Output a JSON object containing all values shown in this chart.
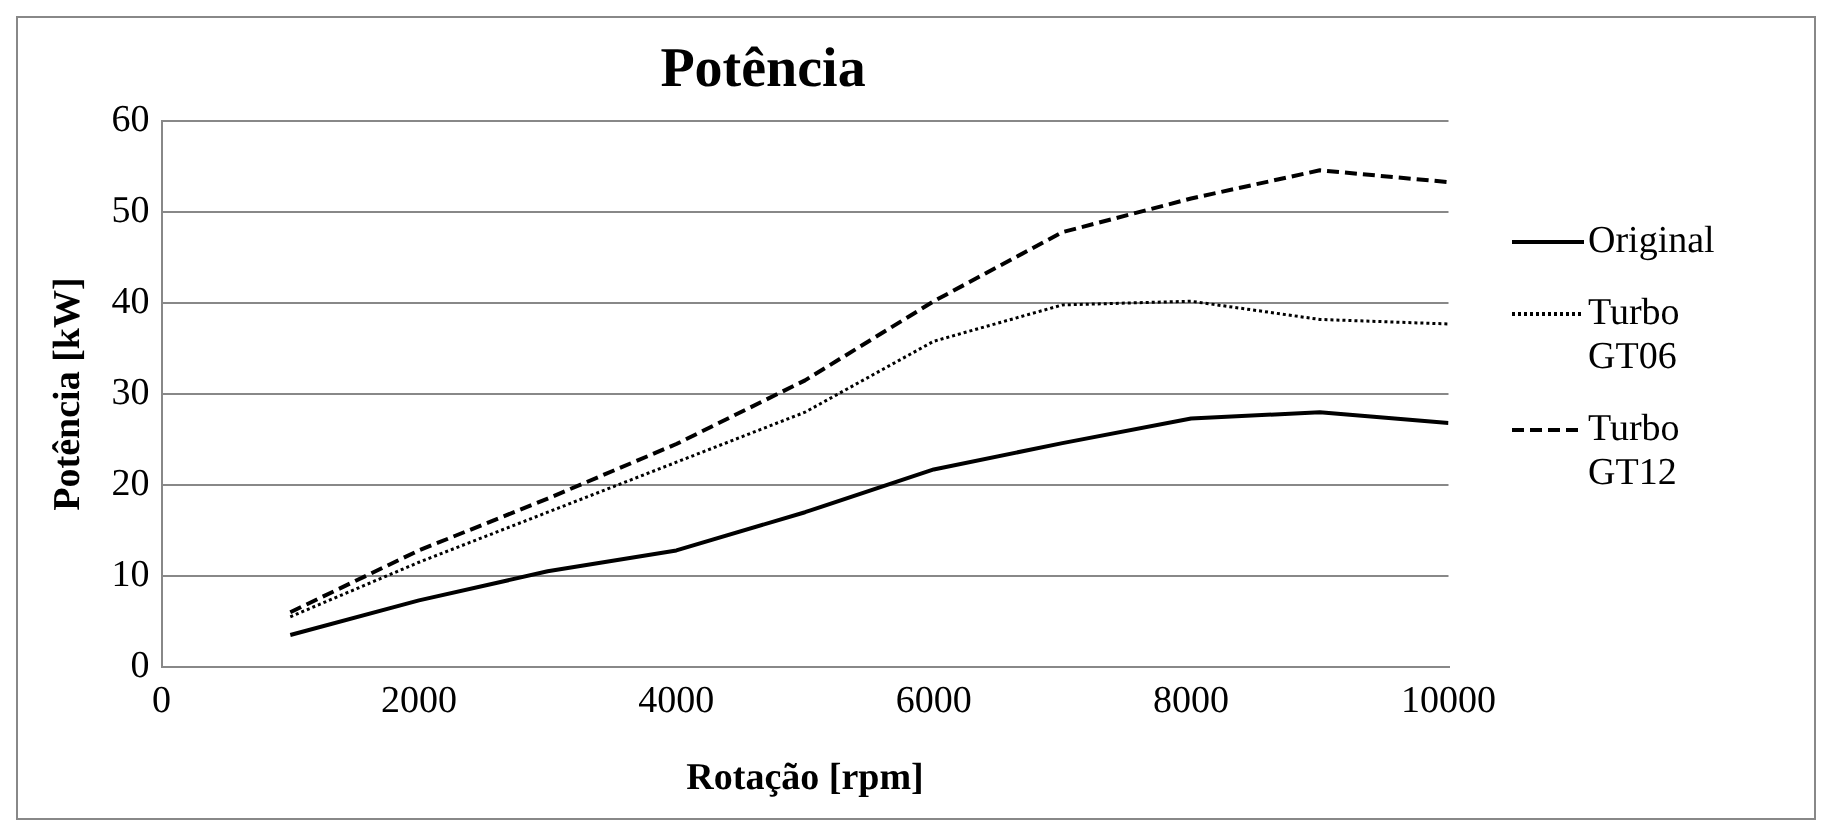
{
  "chart_data": {
    "type": "line",
    "title": "Potência",
    "xlabel": "Rotação [rpm]",
    "ylabel": "Potência [kW]",
    "x": [
      1000,
      2000,
      3000,
      4000,
      5000,
      6000,
      7000,
      8000,
      9000,
      10000
    ],
    "series": [
      {
        "name": "Original",
        "color": "#000000",
        "line_style": "solid",
        "values": [
          3.5,
          7.3,
          10.5,
          12.8,
          17,
          21.7,
          24.6,
          27.3,
          28,
          26.8
        ]
      },
      {
        "name": "Turbo GT06",
        "color": "#000000",
        "line_style": "dotted",
        "values": [
          5.5,
          11.5,
          17,
          22.5,
          28,
          35.8,
          39.8,
          40.2,
          38.2,
          37.7
        ]
      },
      {
        "name": "Turbo GT12",
        "color": "#000000",
        "line_style": "dashed",
        "values": [
          6,
          12.8,
          18.5,
          24.5,
          31.5,
          40.2,
          47.8,
          51.5,
          54.6,
          53.3
        ]
      }
    ],
    "xlim": [
      0,
      10000
    ],
    "xticks": [
      0,
      2000,
      4000,
      6000,
      8000,
      10000
    ],
    "ylim": [
      0,
      60
    ],
    "yticks": [
      0,
      10,
      20,
      30,
      40,
      50,
      60
    ],
    "grid": "y",
    "legend": "right",
    "marker": "none"
  }
}
